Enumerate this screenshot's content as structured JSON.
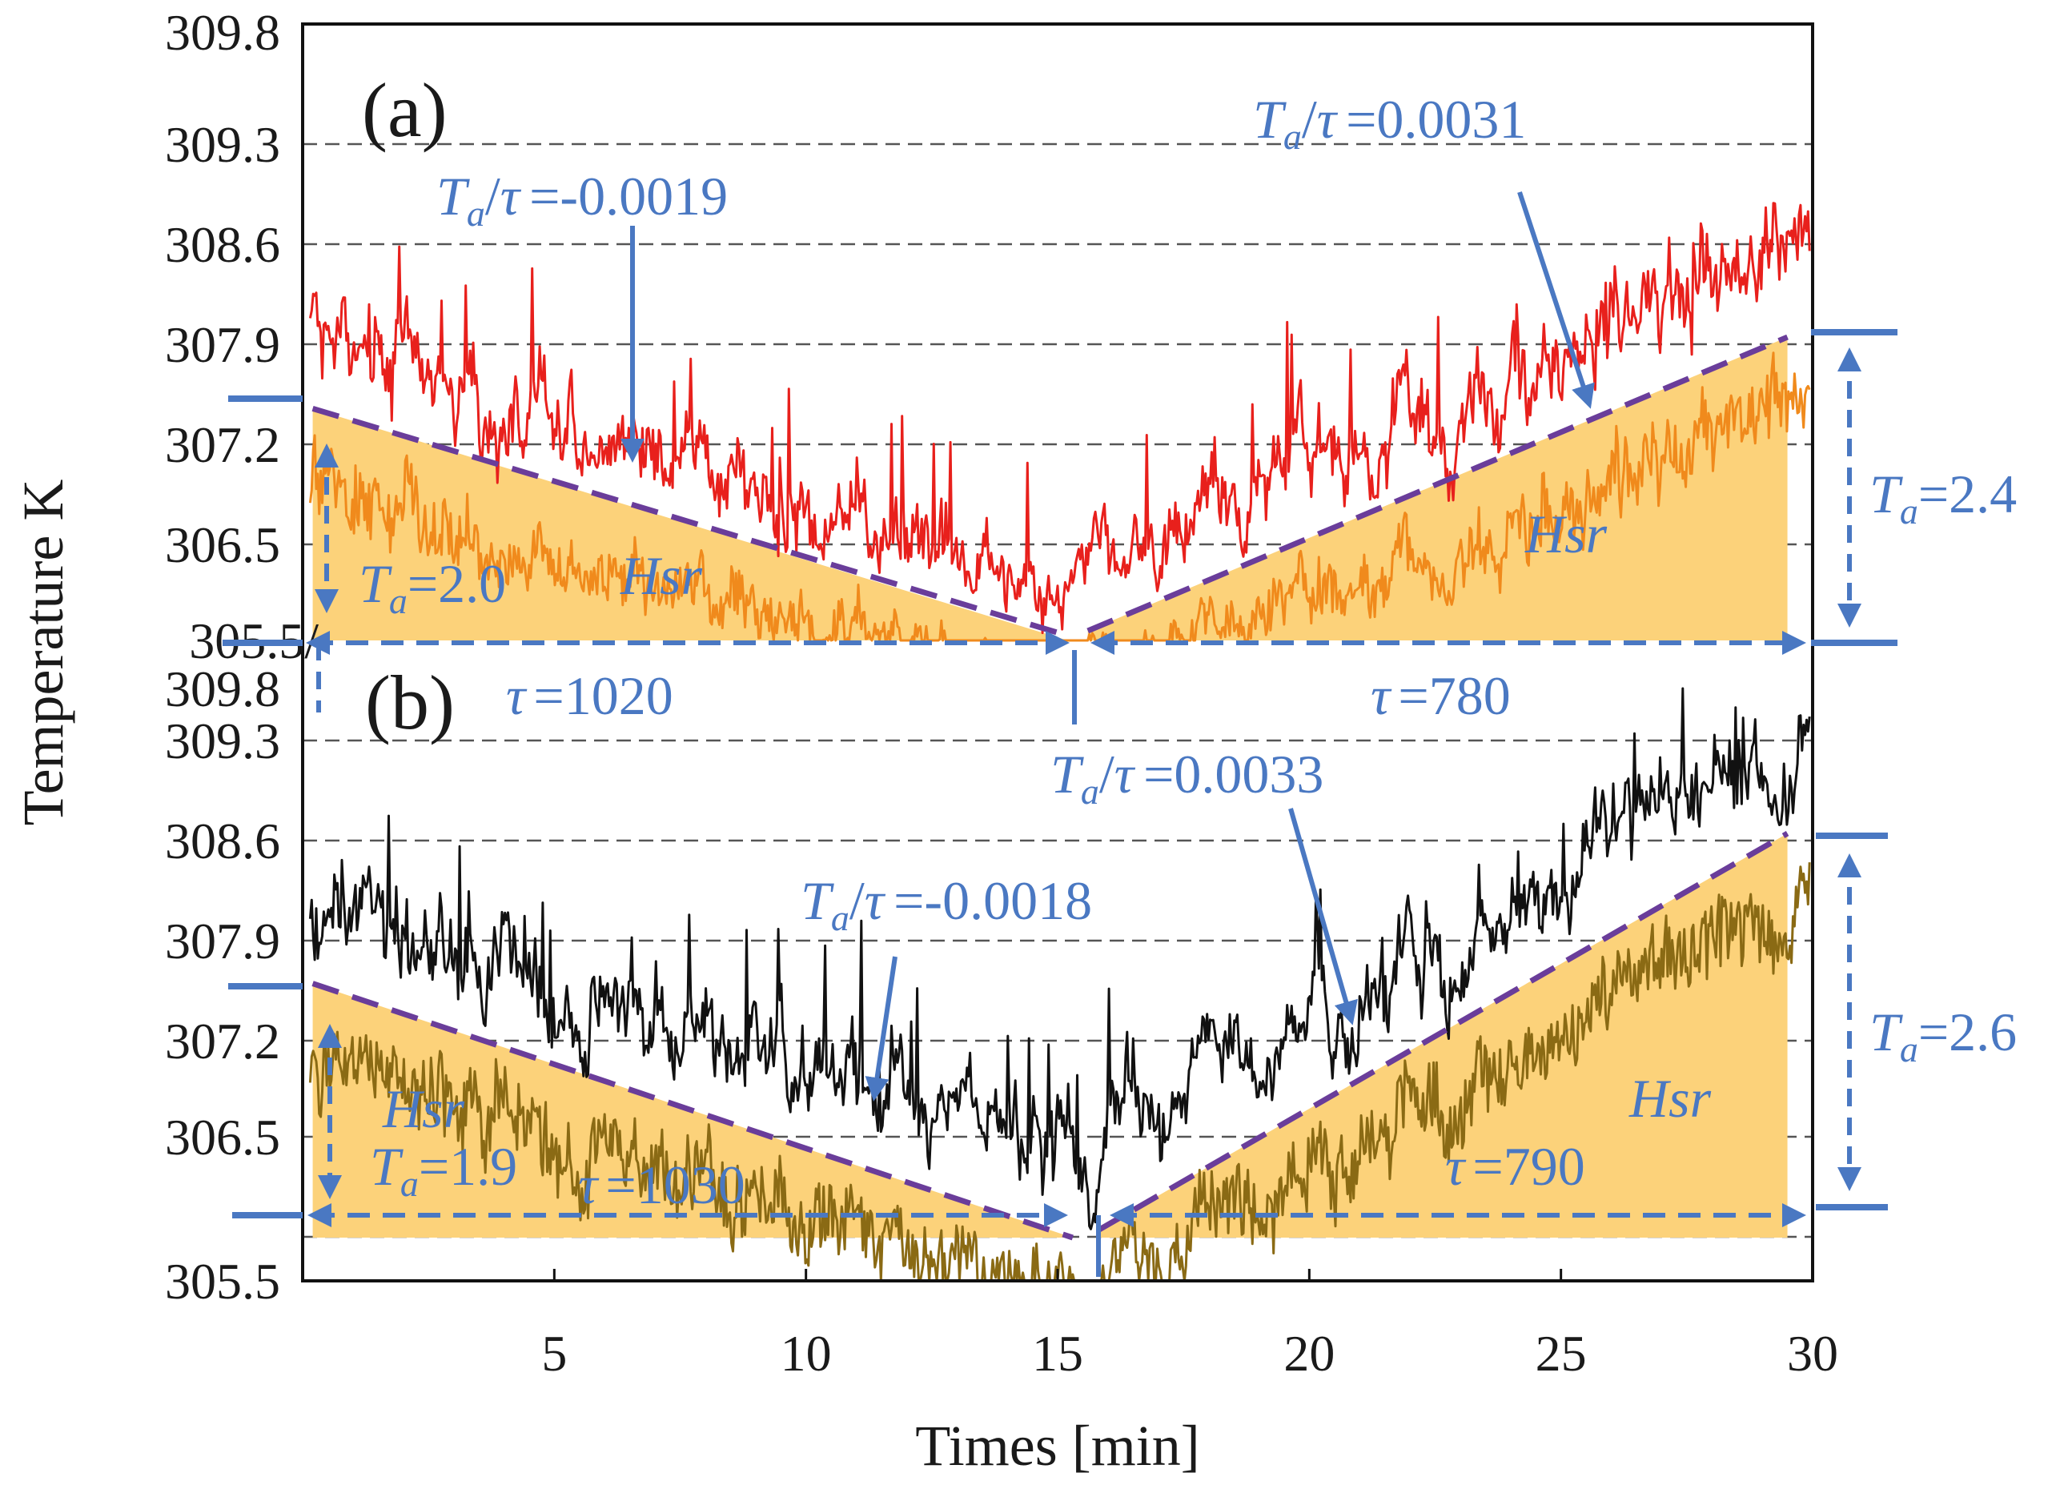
{
  "chart_data": {
    "type": "line",
    "xlabel": "Times [min]",
    "ylabel": "Temperature K",
    "xlim": [
      0,
      30
    ],
    "x_ticks": [
      5,
      10,
      15,
      20,
      25,
      30
    ],
    "panels": [
      {
        "id": "a",
        "label": "(a)",
        "ylim": [
          305.5,
          309.8
        ],
        "y_ticks": [
          "309.8",
          "309.3",
          "308.6",
          "307.9",
          "307.2",
          "306.5",
          "305.5/"
        ],
        "y_tick_values": [
          309.8,
          309.3,
          308.6,
          307.9,
          307.2,
          306.5,
          305.5
        ],
        "series_color": "#e8201c",
        "fill_noise_color": "#f08a1c",
        "trend_lines": [
          {
            "x": [
              0.2,
              15.2
            ],
            "y": [
              307.45,
              305.55
            ]
          },
          {
            "x": [
              15.6,
              29.5
            ],
            "y": [
              305.6,
              307.95
            ]
          }
        ],
        "hsr_regions": [
          {
            "x": [
              0.2,
              15.2
            ],
            "top": [
              307.45,
              305.5
            ],
            "base": 305.5
          },
          {
            "x": [
              15.6,
              29.5
            ],
            "top": [
              305.6,
              307.95
            ],
            "base": 305.5
          }
        ],
        "annotations": {
          "slope_left": "=-0.0019",
          "slope_right": "=0.0031",
          "ta_left": "=2.0",
          "ta_right": "=2.4",
          "tau_left": "=1020",
          "tau_right": "=780",
          "hsr_left": "Hsr",
          "hsr_right": "Hsr"
        }
      },
      {
        "id": "b",
        "label": "(b)",
        "ylim": [
          305.5,
          309.8
        ],
        "y_ticks": [
          "309.8",
          "309.3",
          "308.6",
          "307.9",
          "307.2",
          "306.5",
          "305.5"
        ],
        "y_tick_values": [
          309.8,
          309.3,
          308.6,
          307.9,
          307.2,
          306.5,
          305.5
        ],
        "series_color": "#111111",
        "fill_noise_color": "#8a6a14",
        "trend_lines": [
          {
            "x": [
              0.2,
              15.3
            ],
            "y": [
              307.6,
              305.8
            ]
          },
          {
            "x": [
              15.8,
              29.5
            ],
            "y": [
              305.85,
              308.65
            ]
          }
        ],
        "hsr_regions": [
          {
            "x": [
              0.2,
              15.3
            ],
            "top": [
              307.6,
              305.8
            ],
            "base": 305.8
          },
          {
            "x": [
              15.8,
              29.5
            ],
            "top": [
              305.85,
              308.65
            ],
            "base": 305.8
          }
        ],
        "annotations": {
          "slope_left": "=-0.0018",
          "slope_right": "=0.0033",
          "ta_left": "=1.9",
          "ta_right": "=2.6",
          "tau_left": "=1030",
          "tau_right": "=790",
          "hsr_left": "Hsr",
          "hsr_right": "Hsr"
        }
      }
    ]
  },
  "symbols": {
    "ta": "T",
    "ta_sub": "a",
    "slash": "/",
    "tau": "τ"
  },
  "colors": {
    "annotation": "#4a78c2",
    "trend": "#6a3d9a",
    "hsr_fill": "#fcd27a",
    "gridline": "#555555"
  }
}
